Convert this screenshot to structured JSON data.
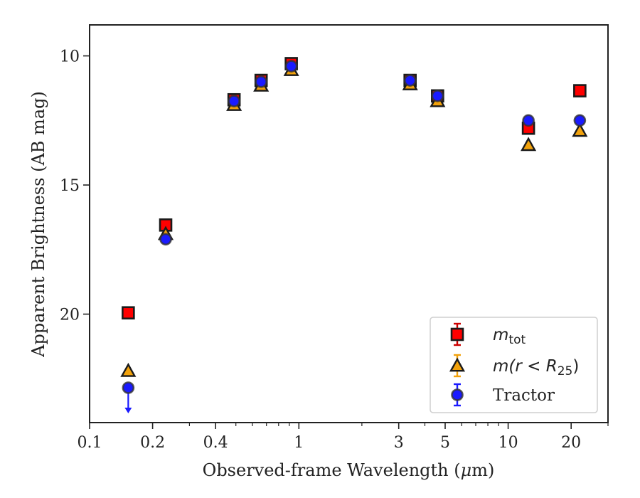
{
  "chart_data": {
    "type": "scatter",
    "xscale": "log",
    "xlim": [
      0.1,
      30
    ],
    "ylim": [
      24.2,
      8.8
    ],
    "y_inverted": true,
    "xlabel": "Observed-frame Wavelength (μm)",
    "ylabel": "Apparent Brightness (AB mag)",
    "xtick_labels": [
      {
        "value": 0.1,
        "label": "0.1"
      },
      {
        "value": 0.2,
        "label": "0.2"
      },
      {
        "value": 0.4,
        "label": "0.4"
      },
      {
        "value": 1,
        "label": "1"
      },
      {
        "value": 3,
        "label": "3"
      },
      {
        "value": 5,
        "label": "5"
      },
      {
        "value": 10,
        "label": "10"
      },
      {
        "value": 20,
        "label": "20"
      }
    ],
    "ytick_labels": [
      {
        "value": 10,
        "label": "10"
      },
      {
        "value": 15,
        "label": "15"
      },
      {
        "value": 20,
        "label": "20"
      }
    ],
    "grid": false,
    "legend_position": "lower-right",
    "series": [
      {
        "name": "m_tot",
        "legend_label": "mtot",
        "marker": "square",
        "color": "#ff0000",
        "errorbar_color": "#cc0000",
        "points": [
          {
            "x": 0.153,
            "y": 19.95
          },
          {
            "x": 0.231,
            "y": 16.55
          },
          {
            "x": 0.49,
            "y": 11.7
          },
          {
            "x": 0.66,
            "y": 10.95
          },
          {
            "x": 0.92,
            "y": 10.3
          },
          {
            "x": 3.4,
            "y": 10.95
          },
          {
            "x": 4.6,
            "y": 11.55
          },
          {
            "x": 12.5,
            "y": 12.8
          },
          {
            "x": 22.0,
            "y": 11.35
          }
        ]
      },
      {
        "name": "m(r<R25)",
        "legend_label": "m(r<R25)",
        "marker": "triangle",
        "color": "#f2a20c",
        "errorbar_color": "#f2a20c",
        "points": [
          {
            "x": 0.153,
            "y": 22.2
          },
          {
            "x": 0.231,
            "y": 16.9
          },
          {
            "x": 0.49,
            "y": 11.9
          },
          {
            "x": 0.66,
            "y": 11.15
          },
          {
            "x": 0.92,
            "y": 10.55
          },
          {
            "x": 3.4,
            "y": 11.1
          },
          {
            "x": 4.6,
            "y": 11.75
          },
          {
            "x": 12.5,
            "y": 13.45
          },
          {
            "x": 22.0,
            "y": 12.9
          }
        ]
      },
      {
        "name": "Tractor",
        "legend_label": "Tractor",
        "marker": "circle",
        "color": "#1a1aff",
        "errorbar_color": "#1a1aff",
        "upper_limit_x": 0.153,
        "points": [
          {
            "x": 0.153,
            "y": 22.85
          },
          {
            "x": 0.231,
            "y": 17.1
          },
          {
            "x": 0.49,
            "y": 11.75
          },
          {
            "x": 0.66,
            "y": 11.0
          },
          {
            "x": 0.92,
            "y": 10.4
          },
          {
            "x": 3.4,
            "y": 10.95
          },
          {
            "x": 4.6,
            "y": 11.55
          },
          {
            "x": 12.5,
            "y": 12.5
          },
          {
            "x": 22.0,
            "y": 12.5
          }
        ]
      }
    ]
  }
}
